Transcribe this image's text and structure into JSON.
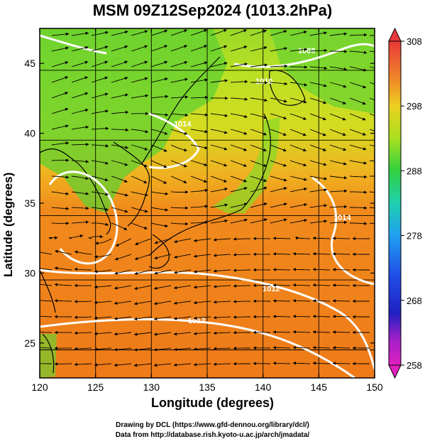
{
  "title": "MSM 09Z12Sep2024 (1013.2hPa)",
  "xlabel": "Longitude (degrees)",
  "ylabel": "Latitude  (degrees)",
  "x_ticks": [
    "120",
    "125",
    "130",
    "135",
    "140",
    "145",
    "150"
  ],
  "y_ticks": [
    "25",
    "30",
    "35",
    "40",
    "45"
  ],
  "colorbar_ticks": [
    "308",
    "298",
    "288",
    "278",
    "268",
    "258"
  ],
  "contour_labels": [
    "1008",
    "1010",
    "1012",
    "1012",
    "1014",
    "1014"
  ],
  "credits": {
    "line1": "Drawing by DCL (https://www.gfd-dennou.org/library/dcl/)",
    "line2": "Data from http://database.rish.kyoto-u.ac.jp/arch/jmadata/"
  },
  "map": {
    "lon_range": [
      120,
      150
    ],
    "lat_range": [
      22.5,
      47.5
    ],
    "grid": true,
    "colorbar_range": [
      258,
      308
    ],
    "colors": {
      "warm_sea": "#f07a1a",
      "land_green": "#58d030",
      "yellow": "#d8e020",
      "contour": "#ffffff",
      "coast": "#000000"
    }
  }
}
